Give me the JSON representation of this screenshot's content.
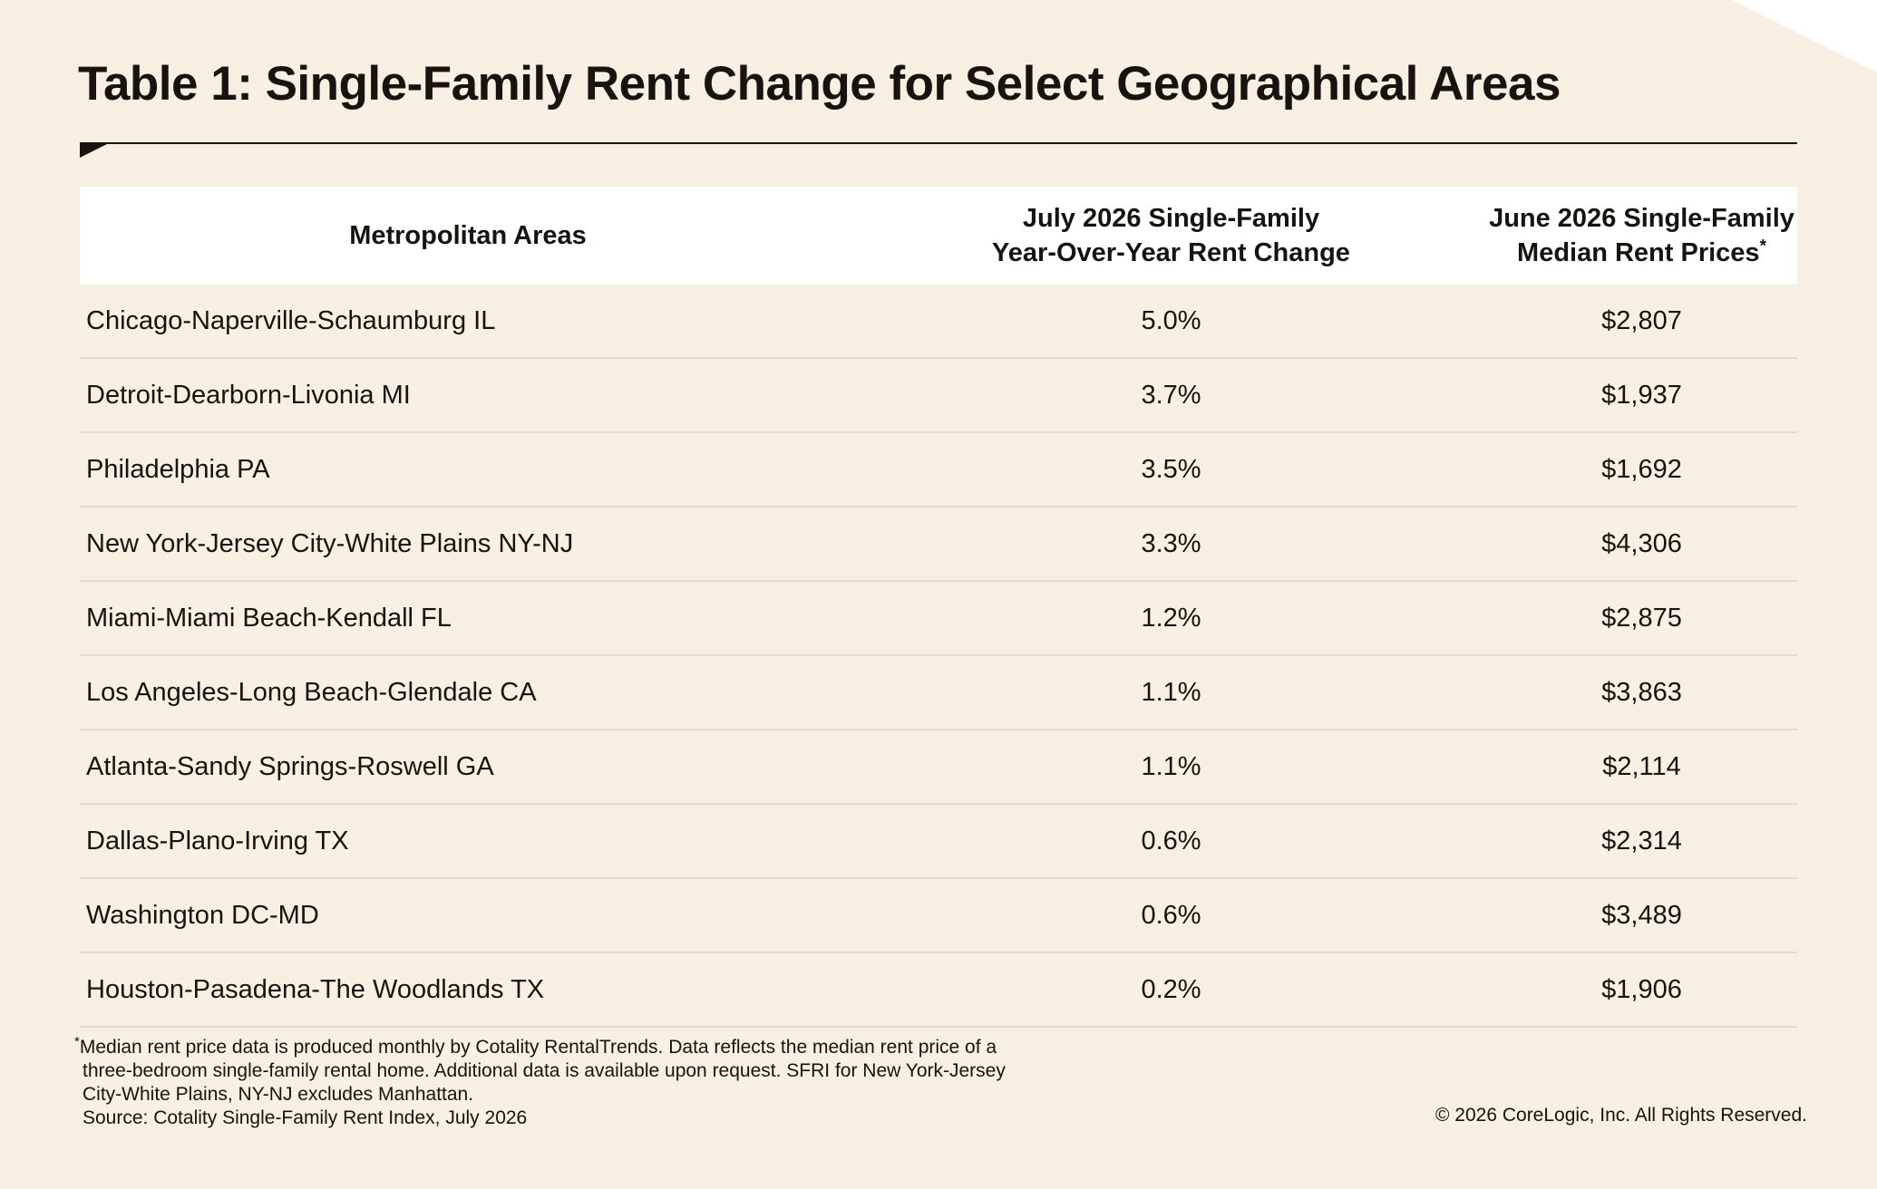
{
  "title": "Table 1: Single-Family Rent Change for Select Geographical Areas",
  "chart_data": {
    "type": "table",
    "title": "Table 1: Single-Family Rent Change for Select Geographical Areas",
    "columns": [
      {
        "line1": "Metropolitan Areas",
        "line2": "",
        "marker": ""
      },
      {
        "line1": "July 2026 Single-Family",
        "line2": "Year-Over-Year Rent Change",
        "marker": ""
      },
      {
        "line1": "June 2026 Single-Family",
        "line2": "Median Rent Prices",
        "marker": "*"
      }
    ],
    "rows": [
      {
        "area": "Chicago-Naperville-Schaumburg IL",
        "yoy_change": "5.0%",
        "median_rent": "$2,807"
      },
      {
        "area": "Detroit-Dearborn-Livonia MI",
        "yoy_change": "3.7%",
        "median_rent": "$1,937"
      },
      {
        "area": "Philadelphia PA",
        "yoy_change": "3.5%",
        "median_rent": "$1,692"
      },
      {
        "area": "New York-Jersey City-White Plains NY-NJ",
        "yoy_change": "3.3%",
        "median_rent": "$4,306"
      },
      {
        "area": "Miami-Miami Beach-Kendall FL",
        "yoy_change": "1.2%",
        "median_rent": "$2,875"
      },
      {
        "area": "Los Angeles-Long Beach-Glendale CA",
        "yoy_change": "1.1%",
        "median_rent": "$3,863"
      },
      {
        "area": "Atlanta-Sandy Springs-Roswell GA",
        "yoy_change": "1.1%",
        "median_rent": "$2,114"
      },
      {
        "area": "Dallas-Plano-Irving TX",
        "yoy_change": "0.6%",
        "median_rent": "$2,314"
      },
      {
        "area": "Washington DC-MD",
        "yoy_change": "0.6%",
        "median_rent": "$3,489"
      },
      {
        "area": "Houston-Pasadena-The Woodlands TX",
        "yoy_change": "0.2%",
        "median_rent": "$1,906"
      }
    ]
  },
  "footnote": {
    "marker": "*",
    "lines": [
      "Median rent price data is produced monthly by Cotality RentalTrends. Data reflects the median rent price of a",
      "three-bedroom single-family rental home. Additional data is available upon request. SFRI for New York-Jersey",
      "City-White Plains, NY-NJ excludes Manhattan.",
      "Source: Cotality Single-Family Rent Index, July 2026"
    ]
  },
  "copyright": "© 2026 CoreLogic, Inc. All Rights Reserved.",
  "colors": {
    "background": "#f6efe2",
    "header_background": "#ffffff",
    "text": "#17140f",
    "row_divider": "#e3dacb"
  }
}
